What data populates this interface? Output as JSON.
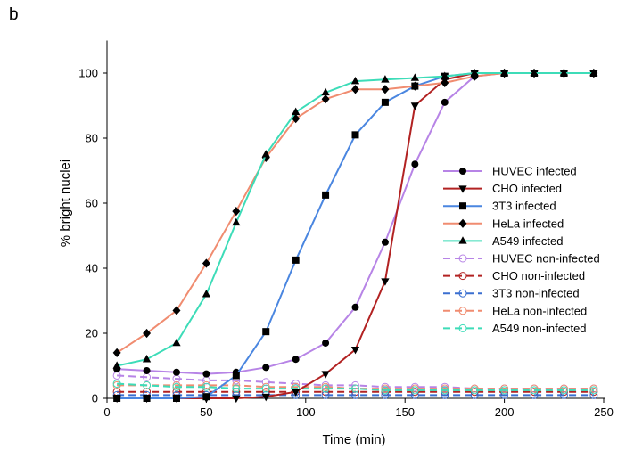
{
  "panel_label": "b",
  "chart_data": {
    "type": "line",
    "xlabel": "Time (min)",
    "ylabel": "% bright nuclei",
    "xlim": [
      0,
      250
    ],
    "ylim": [
      0,
      110
    ],
    "x_ticks": [
      0,
      50,
      100,
      150,
      200,
      250
    ],
    "y_ticks": [
      0,
      20,
      40,
      60,
      80,
      100
    ],
    "grid": false,
    "legend_position": "right",
    "series": [
      {
        "name": "HUVEC infected",
        "color": "#b784e6",
        "marker": "circle",
        "filled": true,
        "dashed": false,
        "x": [
          5,
          20,
          35,
          50,
          65,
          80,
          95,
          110,
          125,
          140,
          155,
          170,
          185,
          200,
          215,
          230,
          245
        ],
        "y": [
          9,
          8.5,
          8,
          7.5,
          8,
          9.5,
          12,
          17,
          28,
          48,
          72,
          91,
          99,
          100,
          100,
          100,
          100
        ]
      },
      {
        "name": "CHO infected",
        "color": "#b22222",
        "marker": "triangle-down",
        "filled": true,
        "dashed": false,
        "x": [
          5,
          20,
          35,
          50,
          65,
          80,
          95,
          110,
          125,
          140,
          155,
          170,
          185,
          200,
          215,
          230,
          245
        ],
        "y": [
          0,
          0,
          0,
          0,
          0,
          0.5,
          2,
          7.5,
          15,
          36,
          90,
          98,
          100,
          100,
          100,
          100,
          100
        ]
      },
      {
        "name": "3T3 infected",
        "color": "#4a86e0",
        "marker": "square",
        "filled": true,
        "dashed": false,
        "x": [
          5,
          20,
          35,
          50,
          65,
          80,
          95,
          110,
          125,
          140,
          155,
          170,
          185,
          200,
          215,
          230,
          245
        ],
        "y": [
          0,
          0,
          0,
          0.5,
          7,
          20.5,
          42.5,
          62.5,
          81,
          91,
          96,
          99,
          100,
          100,
          100,
          100,
          100
        ]
      },
      {
        "name": "HeLa infected",
        "color": "#f08c70",
        "marker": "diamond",
        "filled": true,
        "dashed": false,
        "x": [
          5,
          20,
          35,
          50,
          65,
          80,
          95,
          110,
          125,
          140,
          155,
          170,
          185,
          200,
          215,
          230,
          245
        ],
        "y": [
          14,
          20,
          27,
          41.5,
          57.5,
          74,
          86,
          92,
          95,
          95,
          96,
          97,
          99,
          100,
          100,
          100,
          100
        ]
      },
      {
        "name": "A549 infected",
        "color": "#3ddcb8",
        "marker": "triangle-up",
        "filled": true,
        "dashed": false,
        "x": [
          5,
          20,
          35,
          50,
          65,
          80,
          95,
          110,
          125,
          140,
          155,
          170,
          185,
          200,
          215,
          230,
          245
        ],
        "y": [
          10,
          12,
          17,
          32,
          54,
          75,
          88,
          94,
          97.5,
          98,
          98.5,
          99,
          100,
          100,
          100,
          100,
          100
        ]
      },
      {
        "name": "HUVEC non-infected",
        "color": "#b784e6",
        "marker": "circle",
        "filled": false,
        "dashed": true,
        "x": [
          5,
          20,
          35,
          50,
          65,
          80,
          95,
          110,
          125,
          140,
          155,
          170,
          185,
          200,
          215,
          230,
          245
        ],
        "y": [
          7,
          6.5,
          6,
          5.5,
          5.5,
          5,
          4.5,
          4,
          4,
          3.5,
          3.5,
          3.5,
          3,
          3,
          3,
          3,
          3
        ]
      },
      {
        "name": "CHO non-infected",
        "color": "#b22222",
        "marker": "circle",
        "filled": false,
        "dashed": true,
        "x": [
          5,
          20,
          35,
          50,
          65,
          80,
          95,
          110,
          125,
          140,
          155,
          170,
          185,
          200,
          215,
          230,
          245
        ],
        "y": [
          2,
          2,
          2,
          2,
          2,
          2,
          2,
          2,
          2,
          2,
          2,
          2,
          2,
          2,
          2,
          2,
          2
        ]
      },
      {
        "name": "3T3 non-infected",
        "color": "#3a6fd0",
        "marker": "circle",
        "filled": false,
        "dashed": true,
        "x": [
          5,
          20,
          35,
          50,
          65,
          80,
          95,
          110,
          125,
          140,
          155,
          170,
          185,
          200,
          215,
          230,
          245
        ],
        "y": [
          1,
          1,
          1,
          1,
          1,
          1,
          1,
          1,
          1,
          1,
          1,
          1,
          1,
          1,
          1,
          1,
          1
        ]
      },
      {
        "name": "HeLa non-infected",
        "color": "#f08c70",
        "marker": "circle",
        "filled": false,
        "dashed": true,
        "x": [
          5,
          20,
          35,
          50,
          65,
          80,
          95,
          110,
          125,
          140,
          155,
          170,
          185,
          200,
          215,
          230,
          245
        ],
        "y": [
          4,
          4,
          4,
          4,
          4,
          3.5,
          3.5,
          3.5,
          3,
          3,
          3,
          3,
          3,
          3,
          3,
          3,
          3
        ]
      },
      {
        "name": "A549 non-infected",
        "color": "#3ddcb8",
        "marker": "circle",
        "filled": false,
        "dashed": true,
        "x": [
          5,
          20,
          35,
          50,
          65,
          80,
          95,
          110,
          125,
          140,
          155,
          170,
          185,
          200,
          215,
          230,
          245
        ],
        "y": [
          4.5,
          4,
          3.5,
          3.5,
          3,
          3,
          3,
          3,
          3,
          2.5,
          2.5,
          2.5,
          2.5,
          2.5,
          2.5,
          2.5,
          2.5
        ]
      }
    ]
  }
}
